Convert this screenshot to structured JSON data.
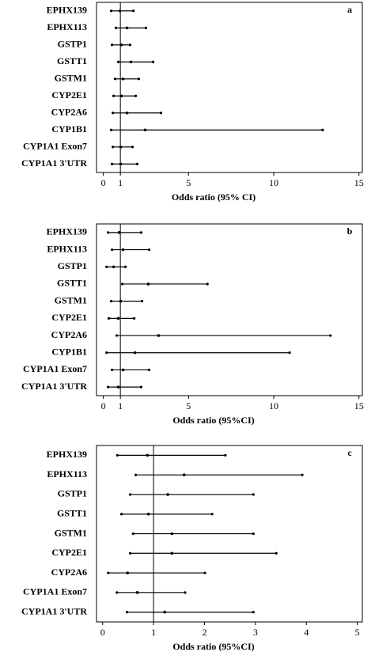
{
  "chart_data": [
    {
      "type": "forest",
      "panel": "a",
      "xlabel": "Odds ratio (95% CI)",
      "categories": [
        "EPHX139",
        "EPHX113",
        "GSTP1",
        "GSTT1",
        "GSTM1",
        "CYP2E1",
        "CYP2A6",
        "CYP1B1",
        "CYP1A1 Exon7",
        "CYP1A1 3'UTR"
      ],
      "values": [
        0.97,
        1.39,
        1.06,
        1.62,
        1.16,
        1.06,
        1.39,
        2.45,
        1.02,
        1.02
      ],
      "lower": [
        0.46,
        0.74,
        0.51,
        0.88,
        0.69,
        0.6,
        0.56,
        0.46,
        0.56,
        0.51
      ],
      "upper": [
        1.76,
        2.5,
        1.57,
        2.92,
        2.08,
        1.9,
        3.38,
        12.87,
        1.71,
        1.99
      ],
      "refline": 1,
      "xlim": [
        -0.4,
        15.2
      ],
      "xticks": [
        0,
        1,
        5,
        10,
        15
      ],
      "color": "#000000"
    },
    {
      "type": "forest",
      "panel": "b",
      "xlabel": "Odds ratio (95%CI)",
      "categories": [
        "EPHX139",
        "EPHX113",
        "GSTP1",
        "GSTT1",
        "GSTM1",
        "CYP2E1",
        "CYP2A6",
        "CYP1B1",
        "CYP1A1 Exon7",
        "CYP1A1 3'UTR"
      ],
      "values": [
        0.93,
        1.16,
        0.6,
        2.64,
        1.02,
        0.88,
        3.24,
        1.85,
        1.16,
        0.88
      ],
      "lower": [
        0.28,
        0.51,
        0.19,
        1.11,
        0.46,
        0.32,
        0.79,
        0.19,
        0.51,
        0.28
      ],
      "upper": [
        2.22,
        2.69,
        1.3,
        6.11,
        2.27,
        1.81,
        13.33,
        10.93,
        2.69,
        2.22
      ],
      "refline": 1,
      "xlim": [
        -0.4,
        15.2
      ],
      "xticks": [
        0,
        1,
        5,
        10,
        15
      ],
      "color": "#000000"
    },
    {
      "type": "forest",
      "panel": "c",
      "xlabel": "Odds ratio (95%CI)",
      "categories": [
        "EPHX139",
        "EPHX113",
        "GSTP1",
        "GSTT1",
        "GSTM1",
        "CYP2E1",
        "CYP2A6",
        "CYP1A1 Exon7",
        "CYP1A1 3'UTR"
      ],
      "values": [
        0.88,
        1.6,
        1.28,
        0.9,
        1.36,
        1.36,
        0.49,
        0.68,
        1.22
      ],
      "lower": [
        0.29,
        0.65,
        0.54,
        0.37,
        0.6,
        0.54,
        0.11,
        0.28,
        0.48
      ],
      "upper": [
        2.41,
        3.92,
        2.96,
        2.15,
        2.96,
        3.41,
        2.01,
        1.62,
        2.96
      ],
      "refline": 1,
      "xlim": [
        -0.12,
        5.1
      ],
      "xticks": [
        0,
        1,
        2,
        3,
        4,
        5
      ],
      "color": "#000000"
    }
  ]
}
